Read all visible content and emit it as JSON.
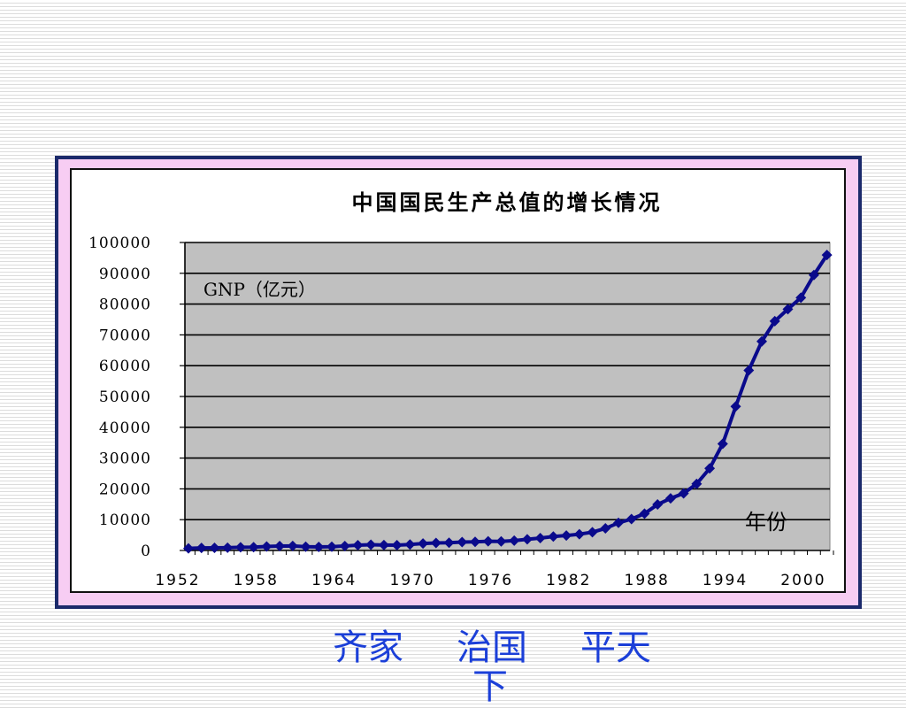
{
  "chart_data": {
    "type": "line",
    "title": "中国国民生产总值的增长情况",
    "series_label": "GNP（亿元）",
    "xlabel": "年份",
    "ylim": [
      0,
      100000
    ],
    "y_ticks": [
      "100000",
      "90000",
      "80000",
      "70000",
      "60000",
      "50000",
      "40000",
      "30000",
      "20000",
      "10000",
      "0"
    ],
    "x_ticks": [
      "1952",
      "1958",
      "1964",
      "1970",
      "1976",
      "1982",
      "1988",
      "1994",
      "2000"
    ],
    "x": [
      1952,
      1953,
      1954,
      1955,
      1956,
      1957,
      1958,
      1959,
      1960,
      1961,
      1962,
      1963,
      1964,
      1965,
      1966,
      1967,
      1968,
      1969,
      1970,
      1971,
      1972,
      1973,
      1974,
      1975,
      1976,
      1977,
      1978,
      1979,
      1980,
      1981,
      1982,
      1983,
      1984,
      1985,
      1986,
      1987,
      1988,
      1989,
      1990,
      1991,
      1992,
      1993,
      1994,
      1995,
      1996,
      1997,
      1998,
      1999,
      2000,
      2001
    ],
    "series": [
      {
        "values": [
          679,
          824,
          859,
          910,
          1028,
          1068,
          1307,
          1439,
          1457,
          1220,
          1149,
          1233,
          1454,
          1716,
          1868,
          1773,
          1723,
          1937,
          2252,
          2426,
          2518,
          2720,
          2789,
          2997,
          2943,
          3202,
          3624,
          4038,
          4518,
          4862,
          5295,
          5935,
          7171,
          8964,
          10202,
          11963,
          14928,
          16909,
          18548,
          21618,
          26638,
          34634,
          46759,
          58478,
          67885,
          74463,
          78345,
          82067,
          89442,
          95933
        ],
        "color": "#0a0a8c"
      }
    ],
    "grid": true,
    "plot_background": "#c0c0c0"
  },
  "footer": {
    "word1": "齐家",
    "word2": "治国",
    "word3": "平天",
    "word4": "下"
  }
}
